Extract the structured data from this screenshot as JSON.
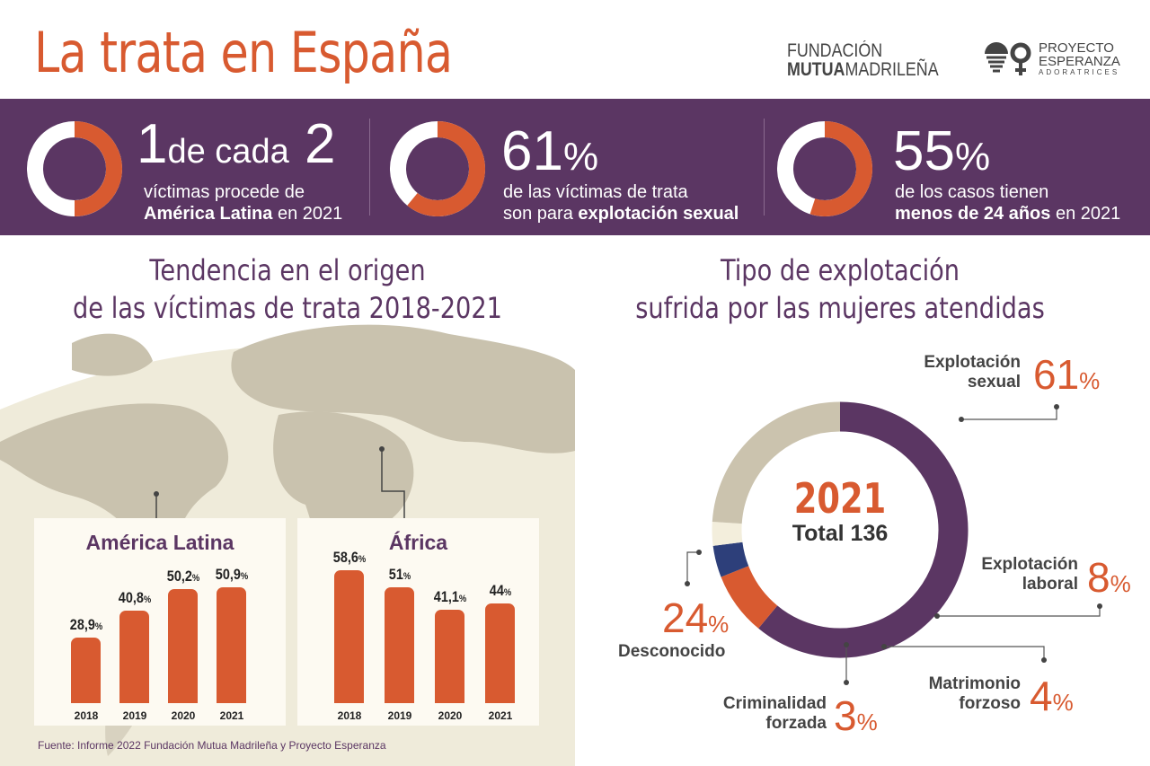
{
  "header": {
    "title": "La trata en España",
    "logo1_line1": "FUNDACIÓN",
    "logo1_bold": "MUTUA",
    "logo1_rest": "MADRILEÑA",
    "logo2_line1": "PROYECTO",
    "logo2_line2": "ESPERANZA",
    "logo2_line3": "ADORATRICES"
  },
  "colors": {
    "purple": "#5b3663",
    "orange": "#d85a30",
    "beige": "#cbc3ae",
    "navy": "#2d3f7a",
    "cream": "#f3eedc"
  },
  "stats": [
    {
      "fraction": 50,
      "big1": "1",
      "mid": "de cada",
      "big2": "2",
      "line1": "víctimas procede de",
      "line2_bold": "América Latina",
      "line2_rest": " en 2021"
    },
    {
      "fraction": 61,
      "big": "61",
      "unit": "%",
      "line1": "de las víctimas de trata",
      "line2_rest": "son para ",
      "line2_bold": "explotación sexual"
    },
    {
      "fraction": 55,
      "big": "55",
      "unit": "%",
      "line1": "de los casos tienen",
      "line2_bold": "menos de 24 años",
      "line2_rest": " en 2021"
    }
  ],
  "left_title": {
    "line1": "Tendencia en el origen",
    "line2": "de las víctimas de trata 2018-2021"
  },
  "right_title": {
    "line1": "Tipo de explotación",
    "line2": "sufrida por las mujeres atendidas"
  },
  "chart_data": [
    {
      "type": "bar",
      "title": "América Latina",
      "categories": [
        "2018",
        "2019",
        "2020",
        "2021"
      ],
      "values": [
        28.9,
        40.8,
        50.2,
        50.9
      ],
      "labels": [
        "28,9",
        "40,8",
        "50,2",
        "50,9"
      ],
      "unit": "%"
    },
    {
      "type": "bar",
      "title": "África",
      "categories": [
        "2018",
        "2019",
        "2020",
        "2021"
      ],
      "values": [
        58.6,
        51,
        41.1,
        44
      ],
      "labels": [
        "58,6",
        "51",
        "41,1",
        "44"
      ],
      "unit": "%"
    },
    {
      "type": "pie",
      "center_year": "2021",
      "center_total": "Total 136",
      "slices": [
        {
          "name": "Explotación sexual",
          "l1": "Explotación",
          "l2": "sexual",
          "value": 61,
          "color": "#5b3663"
        },
        {
          "name": "Explotación laboral",
          "l1": "Explotación",
          "l2": "laboral",
          "value": 8,
          "color": "#d85a30"
        },
        {
          "name": "Matrimonio forzoso",
          "l1": "Matrimonio",
          "l2": "forzoso",
          "value": 4,
          "color": "#2d3f7a"
        },
        {
          "name": "Criminalidad forzada",
          "l1": "Criminalidad",
          "l2": "forzada",
          "value": 3,
          "color": "#f3eedc"
        },
        {
          "name": "Desconocido",
          "l1": "",
          "l2": "Desconocido",
          "value": 24,
          "color": "#cbc3ae"
        }
      ]
    }
  ],
  "source": "Fuente: Informe 2022 Fundación Mutua Madrileña y Proyecto Esperanza"
}
